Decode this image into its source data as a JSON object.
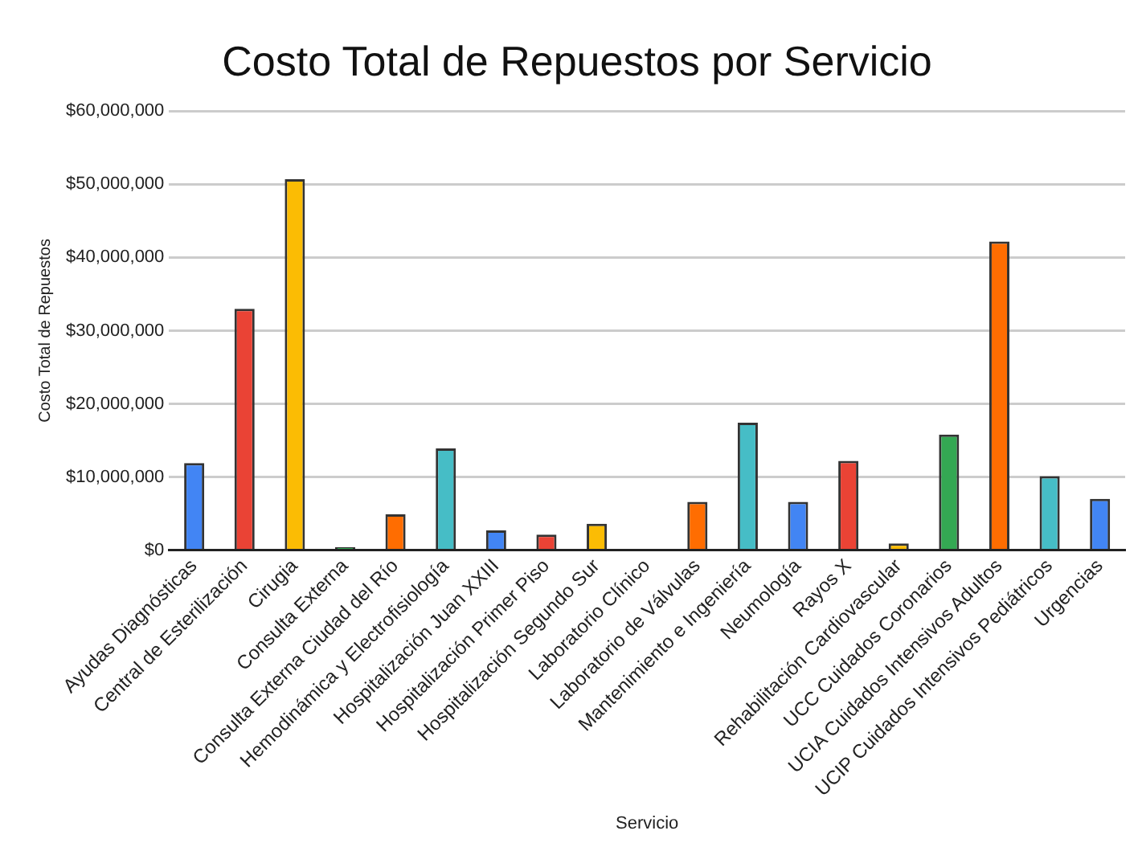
{
  "chart_data": {
    "type": "bar",
    "title": "Costo Total de Repuestos por Servicio",
    "xlabel": "Servicio",
    "ylabel": "Costo Total de Repuestos",
    "categories": [
      "Ayudas Diagnósticas",
      "Central de Esterilización",
      "Cirugia",
      "Consulta Externa",
      "Consulta Externa Ciudad del Río",
      "Hemodinámica y Electrofisiología",
      "Hospitalización Juan XXIII",
      "Hospitalización Primer Piso",
      "Hospitalización Segundo Sur",
      "Laboratorio Clínico",
      "Laboratorio de Válvulas",
      "Mantenimiento e Ingeniería",
      "Neumología",
      "Rayos X",
      "Rehabilitación Cardiovascular",
      "UCC Cuidados Coronarios",
      "UCIA Cuidados Intensivos Adultos",
      "UCIP Cuidados Intensivos Pediátricos",
      "Urgencias"
    ],
    "values": [
      11900000,
      33000000,
      50700000,
      400000,
      4900000,
      13900000,
      2700000,
      2100000,
      3600000,
      0,
      6600000,
      17400000,
      6600000,
      12200000,
      900000,
      15800000,
      42200000,
      10100000,
      7000000
    ],
    "colors": [
      "#4285f4",
      "#ea4335",
      "#fbbc04",
      "#34a853",
      "#ff6d01",
      "#46bdc6",
      "#4285f4",
      "#ea4335",
      "#fbbc04",
      "#34a853",
      "#ff6d01",
      "#46bdc6",
      "#4285f4",
      "#ea4335",
      "#fbbc04",
      "#34a853",
      "#ff6d01",
      "#46bdc6",
      "#4285f4"
    ],
    "ylim": [
      0,
      60000000
    ],
    "yticks": [
      {
        "value": 0,
        "label": "$0"
      },
      {
        "value": 10000000,
        "label": "$10,000,000"
      },
      {
        "value": 20000000,
        "label": "$20,000,000"
      },
      {
        "value": 30000000,
        "label": "$30,000,000"
      },
      {
        "value": 40000000,
        "label": "$40,000,000"
      },
      {
        "value": 50000000,
        "label": "$50,000,000"
      },
      {
        "value": 60000000,
        "label": "$60,000,000"
      }
    ],
    "grid": "y",
    "legend": false
  }
}
